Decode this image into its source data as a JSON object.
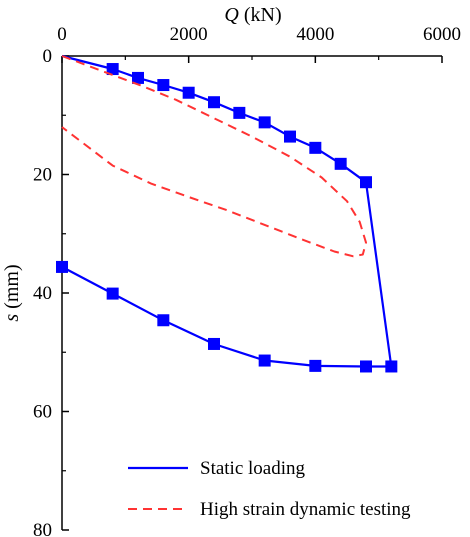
{
  "chart_data": {
    "type": "line",
    "xlabel_var": "Q",
    "xlabel_unit": " (kN)",
    "ylabel_var": "s",
    "ylabel_unit": " (mm)",
    "x_axis_position": "top",
    "y_axis_inverted": true,
    "xlim": [
      0,
      6000
    ],
    "ylim": [
      0,
      80
    ],
    "x_ticks": [
      0,
      2000,
      4000,
      6000
    ],
    "y_ticks": [
      0,
      20,
      40,
      60,
      80
    ],
    "x_tick_labels": [
      "0",
      "2000",
      "4000",
      "6000"
    ],
    "y_tick_labels": [
      "0",
      "20",
      "40",
      "60",
      "80"
    ],
    "grid": false,
    "legend_position": "bottom-right",
    "series": [
      {
        "name": "Static loading",
        "color": "#0000ff",
        "style": "solid",
        "marker": "square",
        "points": [
          [
            0,
            0
          ],
          [
            800,
            2.2
          ],
          [
            1200,
            3.7
          ],
          [
            1600,
            4.9
          ],
          [
            2000,
            6.2
          ],
          [
            2400,
            7.8
          ],
          [
            2800,
            9.6
          ],
          [
            3200,
            11.2
          ],
          [
            3600,
            13.6
          ],
          [
            4000,
            15.5
          ],
          [
            4400,
            18.2
          ],
          [
            4800,
            21.3
          ],
          [
            5200,
            52.4
          ],
          [
            4800,
            52.4
          ],
          [
            4000,
            52.3
          ],
          [
            3200,
            51.4
          ],
          [
            2400,
            48.6
          ],
          [
            1600,
            44.6
          ],
          [
            800,
            40.1
          ],
          [
            0,
            35.6
          ]
        ]
      },
      {
        "name": "High strain dynamic testing",
        "color": "#ff3333",
        "style": "dashed",
        "marker": "none",
        "points": [
          [
            0,
            0
          ],
          [
            600,
            2.4
          ],
          [
            1200,
            4.8
          ],
          [
            1800,
            7.4
          ],
          [
            2400,
            10.5
          ],
          [
            3000,
            13.6
          ],
          [
            3600,
            17.0
          ],
          [
            4100,
            20.5
          ],
          [
            4500,
            24.5
          ],
          [
            4700,
            28.0
          ],
          [
            4800,
            31.5
          ],
          [
            4750,
            33.5
          ],
          [
            4600,
            33.8
          ],
          [
            4300,
            33.0
          ],
          [
            3800,
            31.0
          ],
          [
            3200,
            28.5
          ],
          [
            2600,
            26.0
          ],
          [
            2000,
            23.8
          ],
          [
            1400,
            21.5
          ],
          [
            800,
            18.5
          ],
          [
            0,
            12.0
          ]
        ]
      }
    ]
  }
}
